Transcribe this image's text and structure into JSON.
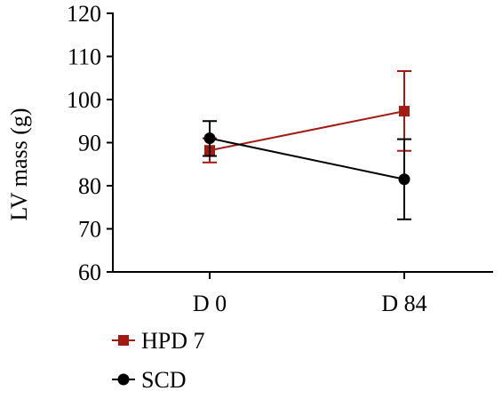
{
  "chart_data": {
    "type": "line",
    "categories": [
      "D 0",
      "D 84"
    ],
    "ylabel": "LV mass (g)",
    "xlabel": "",
    "ylim": [
      60,
      120
    ],
    "yticks": [
      60,
      70,
      80,
      90,
      100,
      110,
      120
    ],
    "grid": false,
    "legend_position": "bottom-left",
    "series": [
      {
        "name": "HPD 7",
        "color": "#a31a12",
        "marker": "square",
        "values": [
          88.2,
          97.3
        ],
        "error_low": [
          85.4,
          88.1
        ],
        "error_high": [
          91.0,
          106.6
        ]
      },
      {
        "name": "SCD",
        "color": "#000000",
        "marker": "circle",
        "values": [
          91.0,
          81.5
        ],
        "error_low": [
          86.9,
          72.2
        ],
        "error_high": [
          95.0,
          90.8
        ]
      }
    ]
  }
}
